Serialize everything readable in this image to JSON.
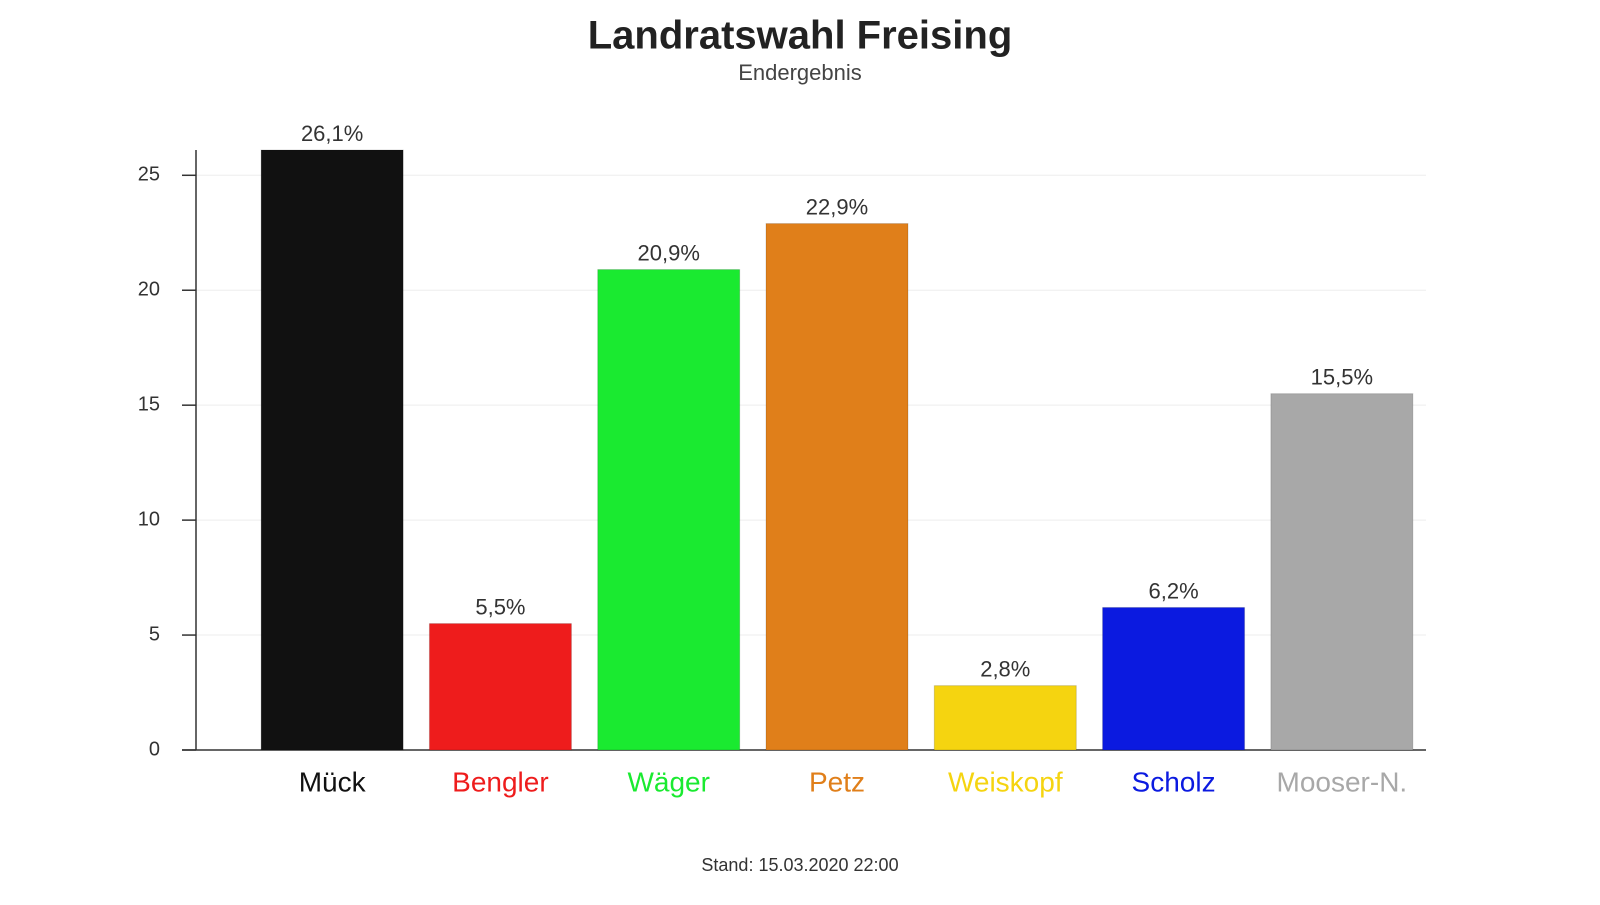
{
  "chart_data": {
    "type": "bar",
    "title": "Landratswahl Freising",
    "subtitle": "Endergebnis",
    "categories": [
      "Mück",
      "Bengler",
      "Wäger",
      "Petz",
      "Weiskopf",
      "Scholz",
      "Mooser-N."
    ],
    "values": [
      26.1,
      5.5,
      20.9,
      22.9,
      2.8,
      6.2,
      15.5
    ],
    "value_labels": [
      "26,1%",
      "5,5%",
      "20,9%",
      "22,9%",
      "2,8%",
      "6,2%",
      "15,5%"
    ],
    "colors": [
      "#111111",
      "#ee1c1c",
      "#1aea30",
      "#e07f1a",
      "#f5d410",
      "#0b1ae0",
      "#a8a8a8"
    ],
    "ylim": [
      0,
      26.1
    ],
    "yticks": [
      0,
      5,
      10,
      15,
      20,
      25
    ],
    "grid": true,
    "footnote": "Stand: 15.03.2020 22:00"
  }
}
